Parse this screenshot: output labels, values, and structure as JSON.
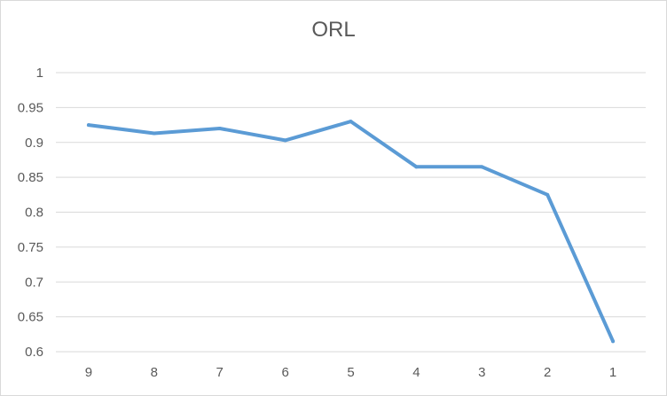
{
  "chart_data": {
    "type": "line",
    "title": "ORL",
    "xlabel": "",
    "ylabel": "",
    "categories": [
      "9",
      "8",
      "7",
      "6",
      "5",
      "4",
      "3",
      "2",
      "1"
    ],
    "series": [
      {
        "values": [
          0.925,
          0.913,
          0.92,
          0.903,
          0.93,
          0.865,
          0.865,
          0.825,
          0.615
        ]
      }
    ],
    "ylim": [
      0.6,
      1.0
    ],
    "y_ticks": [
      "0.6",
      "0.65",
      "0.7",
      "0.75",
      "0.8",
      "0.85",
      "0.9",
      "0.95",
      "1"
    ],
    "grid": true,
    "legend": "none",
    "colors": {
      "series": "#5b9bd5",
      "grid": "#d9d9d9",
      "text": "#595959"
    }
  }
}
